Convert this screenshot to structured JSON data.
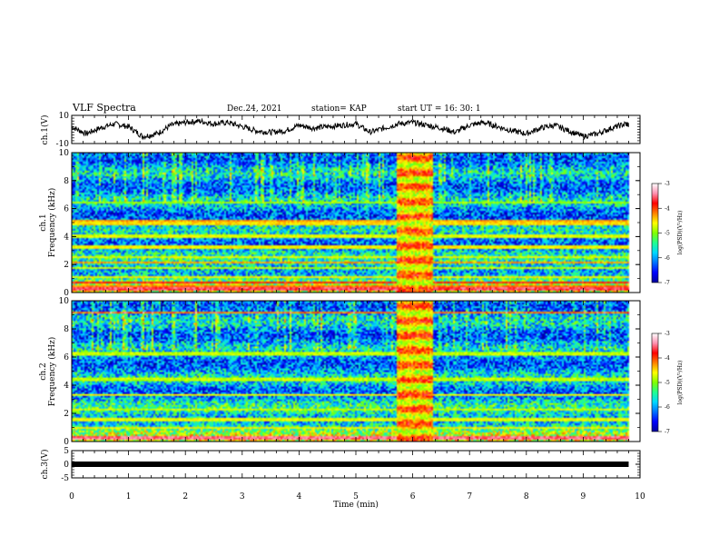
{
  "header": {
    "title": "VLF Spectra",
    "date": "Dec.24, 2021",
    "station": "station= KAP",
    "start_time": "start  UT =   16: 30: 1"
  },
  "colors": {
    "colormap": [
      "#00009a",
      "#0000ff",
      "#0070ff",
      "#00d8ff",
      "#20ff90",
      "#80ff00",
      "#ffff00",
      "#ff8000",
      "#ff0000",
      "#ff90b0",
      "#ffffff"
    ],
    "trace": "#000000"
  },
  "chart_data": [
    {
      "type": "line",
      "panel": "ch1-waveform",
      "ylabel": "ch.1(V)",
      "ylim": [
        -10,
        10
      ],
      "yticks": [
        {
          "v": 10,
          "label": "10"
        },
        {
          "v": -10,
          "label": "-10"
        }
      ],
      "xlim": [
        0,
        10
      ],
      "x": [
        0,
        0.25,
        0.5,
        0.75,
        1.0,
        1.25,
        1.5,
        1.75,
        2.0,
        2.25,
        2.5,
        2.75,
        3.0,
        3.25,
        3.5,
        3.75,
        4.0,
        4.25,
        4.5,
        4.75,
        5.0,
        5.25,
        5.5,
        5.75,
        6.0,
        6.25,
        6.5,
        6.75,
        7.0,
        7.25,
        7.5,
        7.75,
        8.0,
        8.25,
        8.5,
        8.75,
        9.0,
        9.25,
        9.5,
        9.75,
        9.8
      ],
      "values": [
        2,
        -3,
        1,
        4,
        2,
        -5,
        -3,
        3,
        5,
        6,
        4,
        5,
        2,
        -1,
        -2,
        -1,
        3,
        1,
        2,
        3,
        4,
        -2,
        1,
        4,
        5,
        3,
        1,
        -2,
        3,
        5,
        2,
        -1,
        -3,
        1,
        3,
        -1,
        -5,
        -3,
        1,
        4,
        3
      ]
    },
    {
      "type": "heatmap",
      "panel": "ch1-spectrogram",
      "ylabel": "ch.1",
      "ylabel2": "Frequency (kHz)",
      "xlim": [
        0,
        10
      ],
      "ylim": [
        0,
        10
      ],
      "yticks": [
        {
          "v": 0,
          "label": "0"
        },
        {
          "v": 2,
          "label": "2"
        },
        {
          "v": 4,
          "label": "4"
        },
        {
          "v": 6,
          "label": "6"
        },
        {
          "v": 8,
          "label": "8"
        },
        {
          "v": 10,
          "label": "10"
        }
      ],
      "data_end_min": 9.8,
      "burst": {
        "start_min": 5.7,
        "end_min": 6.35
      },
      "bands_khz": [
        {
          "f": 0.3,
          "level": -3.6
        },
        {
          "f": 0.5,
          "level": -4.2
        },
        {
          "f": 0.8,
          "level": -3.8
        },
        {
          "f": 1.2,
          "level": -4.6
        },
        {
          "f": 1.8,
          "level": -4.8
        },
        {
          "f": 2.2,
          "level": -4.3
        },
        {
          "f": 2.6,
          "level": -4.7
        },
        {
          "f": 3.3,
          "level": -4.6
        },
        {
          "f": 4.1,
          "level": -4.7
        },
        {
          "f": 5.0,
          "level": -4.5
        },
        {
          "f": 5.2,
          "level": -4.3
        },
        {
          "f": 6.5,
          "level": -4.9
        }
      ],
      "colorbar": {
        "label": "log(PSD)(V²/Hz)",
        "range": [
          -7,
          -3
        ],
        "ticks": [
          {
            "v": -3,
            "label": "-3"
          },
          {
            "v": -4,
            "label": "-4"
          },
          {
            "v": -5,
            "label": "-5"
          },
          {
            "v": -6,
            "label": "-6"
          },
          {
            "v": -7,
            "label": "-7"
          }
        ]
      }
    },
    {
      "type": "heatmap",
      "panel": "ch2-spectrogram",
      "ylabel": "ch.2",
      "ylabel2": "Frequency (kHz)",
      "xlim": [
        0,
        10
      ],
      "ylim": [
        0,
        10
      ],
      "yticks": [
        {
          "v": 0,
          "label": "0"
        },
        {
          "v": 2,
          "label": "2"
        },
        {
          "v": 4,
          "label": "4"
        },
        {
          "v": 6,
          "label": "6"
        },
        {
          "v": 8,
          "label": "8"
        },
        {
          "v": 10,
          "label": "10"
        }
      ],
      "data_end_min": 9.8,
      "burst": {
        "start_min": 5.7,
        "end_min": 6.35
      },
      "bands_khz": [
        {
          "f": 0.3,
          "level": -3.5
        },
        {
          "f": 1.0,
          "level": -4.6
        },
        {
          "f": 1.6,
          "level": -4.7
        },
        {
          "f": 2.3,
          "level": -4.8
        },
        {
          "f": 3.4,
          "level": -4.6
        },
        {
          "f": 4.5,
          "level": -4.8
        },
        {
          "f": 6.3,
          "level": -4.8
        },
        {
          "f": 9.2,
          "level": -4.2
        }
      ],
      "colorbar": {
        "label": "log(PSD)(V²/Hz)",
        "range": [
          -7,
          -3
        ],
        "ticks": [
          {
            "v": -3,
            "label": "-3"
          },
          {
            "v": -4,
            "label": "-4"
          },
          {
            "v": -5,
            "label": "-5"
          },
          {
            "v": -6,
            "label": "-6"
          },
          {
            "v": -7,
            "label": "-7"
          }
        ]
      }
    },
    {
      "type": "line",
      "panel": "ch3-waveform",
      "ylabel": "ch.3(V)",
      "ylim": [
        -5,
        5
      ],
      "yticks": [
        {
          "v": 5,
          "label": "5"
        },
        {
          "v": 0,
          "label": "0"
        },
        {
          "v": -5,
          "label": "-5"
        }
      ],
      "xlim": [
        0,
        10
      ],
      "x": [
        0,
        9.8
      ],
      "values": [
        0,
        0
      ],
      "xlabel": "Time (min)",
      "xticks": [
        {
          "v": 0,
          "label": "0"
        },
        {
          "v": 1,
          "label": "1"
        },
        {
          "v": 2,
          "label": "2"
        },
        {
          "v": 3,
          "label": "3"
        },
        {
          "v": 4,
          "label": "4"
        },
        {
          "v": 5,
          "label": "5"
        },
        {
          "v": 6,
          "label": "6"
        },
        {
          "v": 7,
          "label": "7"
        },
        {
          "v": 8,
          "label": "8"
        },
        {
          "v": 9,
          "label": "9"
        },
        {
          "v": 10,
          "label": "10"
        }
      ]
    }
  ]
}
